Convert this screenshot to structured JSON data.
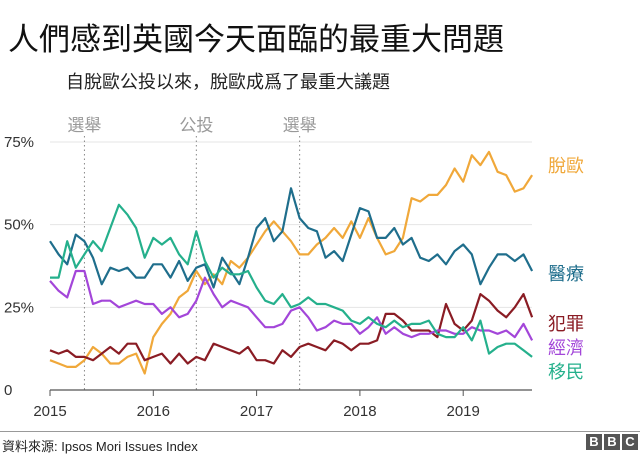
{
  "title": "人們感到英國今天面臨的最重大問題",
  "subtitle": "自脫歐公投以來，脫歐成爲了最重大議題",
  "footer": {
    "source": "資料來源: Ipsos Mori Issues Index",
    "logo": "BBC"
  },
  "chart_data": {
    "type": "line",
    "title": "人們感到英國今天面臨的最重大問題",
    "subtitle": "自脫歐公投以來，脫歐成爲了最重大議題",
    "xlabel": "",
    "ylabel": "",
    "x_range": [
      "2015-01",
      "2019-12"
    ],
    "ylim": [
      0,
      75
    ],
    "x_ticks": [
      "2015",
      "2016",
      "2017",
      "2018",
      "2019"
    ],
    "y_ticks": [
      {
        "value": 0,
        "label": "0"
      },
      {
        "value": 25,
        "label": "25%"
      },
      {
        "value": 50,
        "label": "50%"
      },
      {
        "value": 75,
        "label": "75%"
      }
    ],
    "grid": "horizontal",
    "legend": "direct labels at right",
    "events": [
      {
        "date": "2015-05",
        "label": "選舉"
      },
      {
        "date": "2016-06",
        "label": "公投"
      },
      {
        "date": "2017-06",
        "label": "選舉"
      }
    ],
    "x": [
      "2015-01",
      "2015-02",
      "2015-03",
      "2015-04",
      "2015-05",
      "2015-06",
      "2015-07",
      "2015-08",
      "2015-09",
      "2015-10",
      "2015-11",
      "2015-12",
      "2016-01",
      "2016-02",
      "2016-03",
      "2016-04",
      "2016-05",
      "2016-06",
      "2016-07",
      "2016-08",
      "2016-09",
      "2016-10",
      "2016-11",
      "2016-12",
      "2017-01",
      "2017-02",
      "2017-03",
      "2017-04",
      "2017-05",
      "2017-06",
      "2017-07",
      "2017-08",
      "2017-09",
      "2017-10",
      "2017-11",
      "2017-12",
      "2018-01",
      "2018-02",
      "2018-03",
      "2018-04",
      "2018-05",
      "2018-06",
      "2018-07",
      "2018-08",
      "2018-09",
      "2018-10",
      "2018-11",
      "2018-12",
      "2019-01",
      "2019-02",
      "2019-03",
      "2019-04",
      "2019-05",
      "2019-06",
      "2019-07",
      "2019-08",
      "2019-09"
    ],
    "series": [
      {
        "name": "脫歐",
        "color": "#f0a83a",
        "values": [
          9,
          8,
          7,
          7,
          9,
          13,
          11,
          8,
          8,
          10,
          11,
          5,
          16,
          20,
          23,
          28,
          30,
          36,
          32,
          35,
          32,
          39,
          37,
          40,
          44,
          48,
          51,
          48,
          45,
          41,
          41,
          44,
          46,
          49,
          46,
          51,
          46,
          52,
          46,
          41,
          42,
          46,
          58,
          57,
          59,
          59,
          62,
          67,
          63,
          71,
          68,
          72,
          66,
          65,
          60,
          61,
          65
        ]
      },
      {
        "name": "醫療",
        "color": "#1f6e8c",
        "values": [
          45,
          41,
          38,
          47,
          45,
          40,
          32,
          37,
          36,
          37,
          34,
          34,
          38,
          38,
          34,
          39,
          33,
          37,
          38,
          31,
          40,
          36,
          32,
          40,
          49,
          52,
          45,
          48,
          61,
          52,
          49,
          48,
          40,
          42,
          39,
          47,
          55,
          54,
          46,
          46,
          49,
          44,
          46,
          40,
          39,
          41,
          38,
          42,
          44,
          41,
          32,
          37,
          41,
          41,
          39,
          41,
          36
        ]
      },
      {
        "name": "犯罪",
        "color": "#8a1c24",
        "values": [
          12,
          11,
          12,
          10,
          10,
          9,
          11,
          13,
          11,
          14,
          14,
          9,
          10,
          11,
          8,
          11,
          8,
          10,
          9,
          14,
          13,
          12,
          11,
          13,
          9,
          9,
          8,
          12,
          10,
          13,
          14,
          13,
          12,
          15,
          14,
          12,
          14,
          14,
          15,
          23,
          23,
          21,
          18,
          18,
          18,
          16,
          26,
          20,
          18,
          21,
          29,
          27,
          24,
          22,
          25,
          29,
          22
        ]
      },
      {
        "name": "經濟",
        "color": "#a346d9",
        "values": [
          33,
          30,
          28,
          36,
          36,
          26,
          27,
          27,
          25,
          26,
          27,
          26,
          26,
          23,
          25,
          22,
          23,
          27,
          34,
          29,
          25,
          27,
          26,
          25,
          22,
          19,
          19,
          20,
          24,
          25,
          22,
          18,
          19,
          21,
          20,
          20,
          17,
          19,
          22,
          17,
          19,
          17,
          16,
          17,
          17,
          18,
          18,
          17,
          17,
          19,
          18,
          18,
          17,
          18,
          16,
          20,
          15
        ]
      },
      {
        "name": "移民",
        "color": "#25b08c",
        "values": [
          34,
          34,
          45,
          37,
          41,
          45,
          42,
          49,
          56,
          53,
          49,
          40,
          46,
          44,
          46,
          41,
          38,
          48,
          39,
          34,
          37,
          35,
          35,
          36,
          31,
          27,
          26,
          29,
          25,
          26,
          28,
          26,
          26,
          25,
          24,
          21,
          20,
          22,
          20,
          19,
          21,
          19,
          20,
          20,
          21,
          17,
          16,
          16,
          19,
          15,
          21,
          11,
          13,
          14,
          14,
          12,
          10
        ]
      }
    ]
  }
}
